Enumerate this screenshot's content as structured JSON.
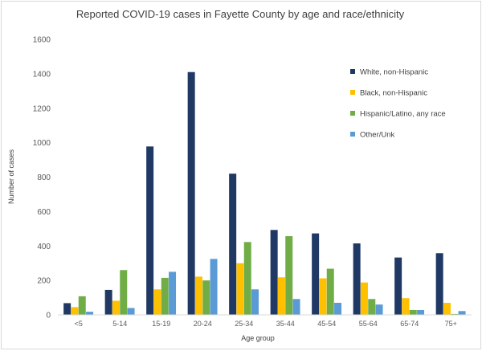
{
  "chart_data": {
    "type": "bar",
    "title": "Reported COVID-19 cases in Fayette County by age and race/ethnicity",
    "xlabel": "Age group",
    "ylabel": "Number of cases",
    "ylim": [
      0,
      1600
    ],
    "yticks": [
      0,
      200,
      400,
      600,
      800,
      1000,
      1200,
      1400,
      1600
    ],
    "grid": false,
    "legend_position": "right",
    "categories": [
      "<5",
      "5-14",
      "15-19",
      "20-24",
      "25-34",
      "35-44",
      "45-54",
      "55-64",
      "65-74",
      "75+"
    ],
    "series": [
      {
        "name": "White, non-Hispanic",
        "color": "#203864",
        "values": [
          68,
          145,
          978,
          1410,
          820,
          493,
          473,
          415,
          333,
          358
        ]
      },
      {
        "name": "Black, non-Hispanic",
        "color": "#ffc000",
        "values": [
          45,
          82,
          148,
          222,
          300,
          218,
          212,
          188,
          97,
          70
        ]
      },
      {
        "name": "Hispanic/Latino, any race",
        "color": "#70ad47",
        "values": [
          108,
          260,
          215,
          200,
          423,
          457,
          268,
          92,
          28,
          5
        ]
      },
      {
        "name": "Other/Unk",
        "color": "#5b9bd5",
        "values": [
          18,
          40,
          250,
          325,
          148,
          92,
          70,
          60,
          28,
          22
        ]
      }
    ]
  }
}
